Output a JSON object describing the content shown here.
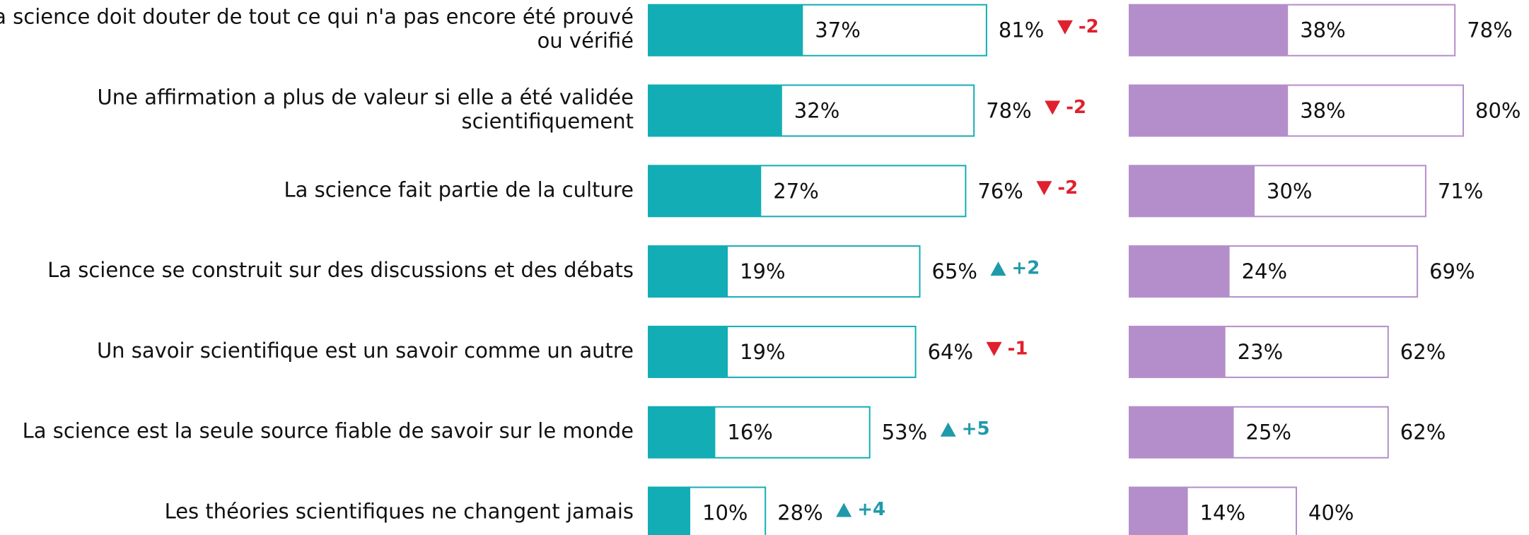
{
  "chart_data": {
    "type": "bar",
    "categories": [
      [
        "La science doit douter de tout ce qui n'a pas encore été prouvé",
        "ou vérifié"
      ],
      [
        "Une affirmation a plus de valeur si elle a été validée",
        "scientifiquement"
      ],
      [
        "La science fait partie de la culture"
      ],
      [
        "La science se construit sur des discussions et des débats"
      ],
      [
        "Un savoir scientifique est un savoir comme un autre"
      ],
      [
        "La science est la seule source fiable de savoir sur le monde"
      ],
      [
        "Les théories scientifiques ne changent jamais"
      ]
    ],
    "xlim": [
      0,
      100
    ],
    "series": [
      {
        "color": "#13adb5",
        "values": [
          37,
          32,
          27,
          19,
          19,
          16,
          10
        ],
        "value_labels": [
          "37%",
          "32%",
          "27%",
          "19%",
          "19%",
          "16%",
          "10%"
        ],
        "totals": [
          81,
          78,
          76,
          65,
          64,
          53,
          28
        ],
        "total_labels": [
          "81%",
          "78%",
          "76%",
          "65%",
          "64%",
          "53%",
          "28%"
        ],
        "changes": [
          -2,
          -2,
          -2,
          2,
          -1,
          5,
          4
        ],
        "change_labels": [
          "-2",
          "-2",
          "-2",
          "+2",
          "-1",
          "+5",
          "+4"
        ]
      },
      {
        "color": "#b48ecb",
        "values": [
          38,
          38,
          30,
          24,
          23,
          25,
          14
        ],
        "value_labels": [
          "38%",
          "38%",
          "30%",
          "24%",
          "23%",
          "25%",
          "14%"
        ],
        "totals": [
          78,
          80,
          71,
          69,
          62,
          62,
          40
        ],
        "total_labels": [
          "78%",
          "80%",
          "71%",
          "69%",
          "62%",
          "62%",
          "40%"
        ]
      }
    ],
    "up_color": "#1f9aaa",
    "down_color": "#e0202e"
  }
}
